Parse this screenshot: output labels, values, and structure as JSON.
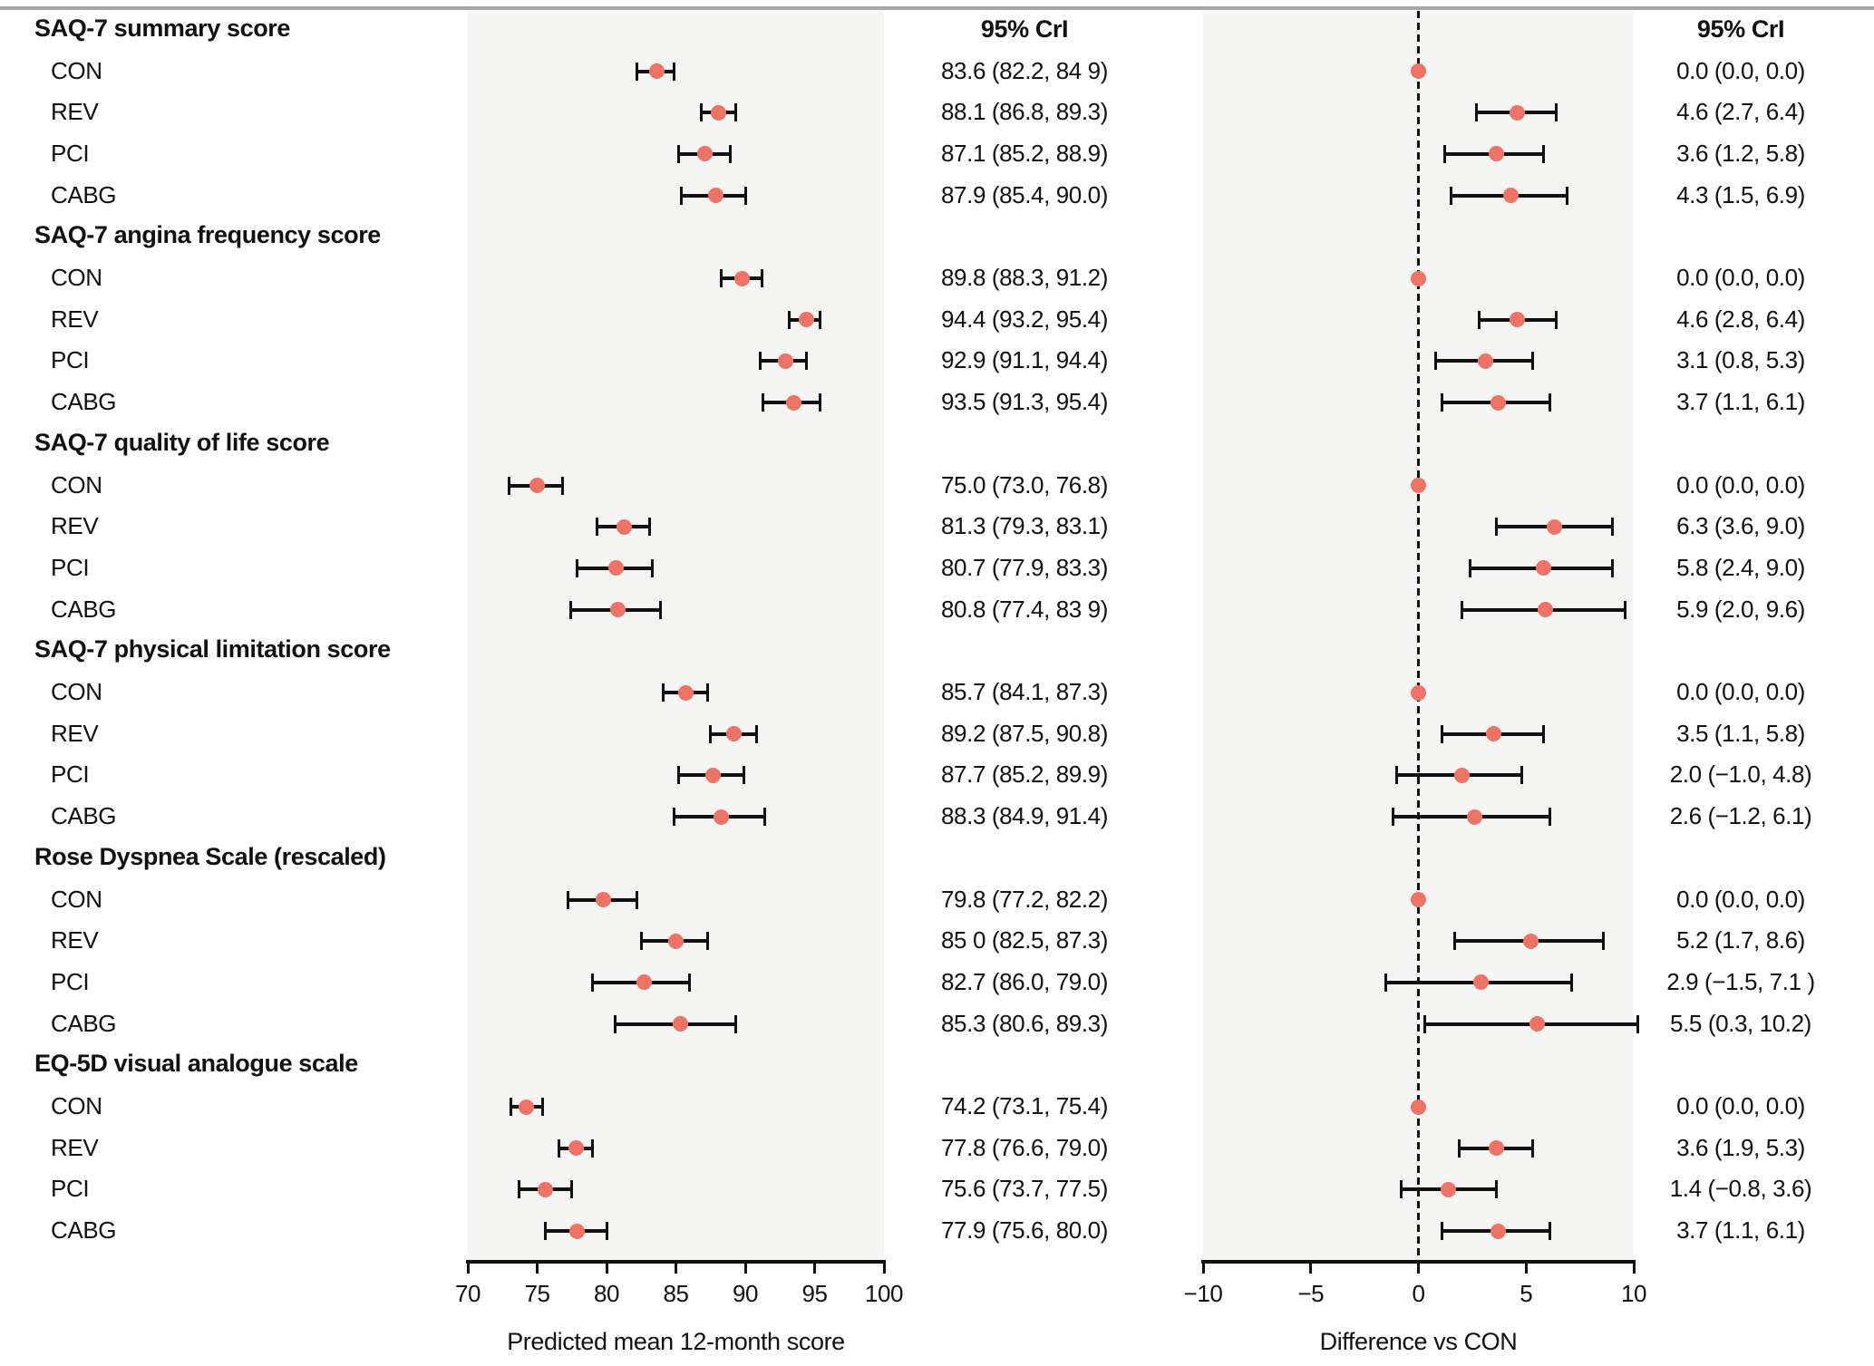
{
  "colors": {
    "marker": "#ee7365",
    "panel_bg": "#f5f5f3",
    "top_rule": "#a6a6a6",
    "interval_line": "#111111"
  },
  "chart_data": {
    "type": "forest",
    "groups": [
      "CON",
      "REV",
      "PCI",
      "CABG"
    ],
    "left_panel": {
      "ci_header": "95% CrI",
      "xlabel": "Predicted mean 12-month score",
      "xlim": [
        70,
        100
      ],
      "xtick_values": [
        70,
        75,
        80,
        85,
        90,
        95,
        100
      ],
      "xtick_labels": [
        "70",
        "75",
        "80",
        "85",
        "90",
        "95",
        "100"
      ]
    },
    "right_panel": {
      "ci_header": "95% CrI",
      "xlabel": "Difference vs CON",
      "xlim": [
        -10,
        10
      ],
      "xtick_values": [
        -10,
        -5,
        0,
        5,
        10
      ],
      "xtick_labels": [
        "−10",
        "−5",
        "0",
        "5",
        "10"
      ],
      "reference_line": 0
    },
    "sections": [
      {
        "title": "SAQ-7 summary score",
        "rows": [
          {
            "label": "CON",
            "mean": 83.6,
            "ci": [
              82.2,
              84.9
            ],
            "ci_text": "83.6 (82.2, 84 9)",
            "diff": 0.0,
            "diff_ci": [
              0.0,
              0.0
            ],
            "diff_text": "0.0 (0.0, 0.0)"
          },
          {
            "label": "REV",
            "mean": 88.1,
            "ci": [
              86.8,
              89.3
            ],
            "ci_text": "88.1 (86.8, 89.3)",
            "diff": 4.6,
            "diff_ci": [
              2.7,
              6.4
            ],
            "diff_text": "4.6 (2.7, 6.4)"
          },
          {
            "label": "PCI",
            "mean": 87.1,
            "ci": [
              85.2,
              88.9
            ],
            "ci_text": "87.1 (85.2, 88.9)",
            "diff": 3.6,
            "diff_ci": [
              1.2,
              5.8
            ],
            "diff_text": "3.6 (1.2, 5.8)"
          },
          {
            "label": "CABG",
            "mean": 87.9,
            "ci": [
              85.4,
              90.0
            ],
            "ci_text": "87.9 (85.4, 90.0)",
            "diff": 4.3,
            "diff_ci": [
              1.5,
              6.9
            ],
            "diff_text": "4.3 (1.5, 6.9)"
          }
        ]
      },
      {
        "title": "SAQ-7 angina frequency score",
        "rows": [
          {
            "label": "CON",
            "mean": 89.8,
            "ci": [
              88.3,
              91.2
            ],
            "ci_text": "89.8 (88.3, 91.2)",
            "diff": 0.0,
            "diff_ci": [
              0.0,
              0.0
            ],
            "diff_text": "0.0 (0.0, 0.0)"
          },
          {
            "label": "REV",
            "mean": 94.4,
            "ci": [
              93.2,
              95.4
            ],
            "ci_text": "94.4 (93.2, 95.4)",
            "diff": 4.6,
            "diff_ci": [
              2.8,
              6.4
            ],
            "diff_text": "4.6 (2.8, 6.4)"
          },
          {
            "label": "PCI",
            "mean": 92.9,
            "ci": [
              91.1,
              94.4
            ],
            "ci_text": "92.9 (91.1, 94.4)",
            "diff": 3.1,
            "diff_ci": [
              0.8,
              5.3
            ],
            "diff_text": "3.1 (0.8, 5.3)"
          },
          {
            "label": "CABG",
            "mean": 93.5,
            "ci": [
              91.3,
              95.4
            ],
            "ci_text": "93.5 (91.3, 95.4)",
            "diff": 3.7,
            "diff_ci": [
              1.1,
              6.1
            ],
            "diff_text": "3.7 (1.1, 6.1)"
          }
        ]
      },
      {
        "title": "SAQ-7 quality of life score",
        "rows": [
          {
            "label": "CON",
            "mean": 75.0,
            "ci": [
              73.0,
              76.8
            ],
            "ci_text": "75.0 (73.0, 76.8)",
            "diff": 0.0,
            "diff_ci": [
              0.0,
              0.0
            ],
            "diff_text": "0.0 (0.0, 0.0)"
          },
          {
            "label": "REV",
            "mean": 81.3,
            "ci": [
              79.3,
              83.1
            ],
            "ci_text": "81.3 (79.3, 83.1)",
            "diff": 6.3,
            "diff_ci": [
              3.6,
              9.0
            ],
            "diff_text": "6.3 (3.6, 9.0)"
          },
          {
            "label": "PCI",
            "mean": 80.7,
            "ci": [
              77.9,
              83.3
            ],
            "ci_text": "80.7 (77.9, 83.3)",
            "diff": 5.8,
            "diff_ci": [
              2.4,
              9.0
            ],
            "diff_text": "5.8 (2.4, 9.0)"
          },
          {
            "label": "CABG",
            "mean": 80.8,
            "ci": [
              77.4,
              83.9
            ],
            "ci_text": "80.8 (77.4, 83 9)",
            "diff": 5.9,
            "diff_ci": [
              2.0,
              9.6
            ],
            "diff_text": "5.9 (2.0, 9.6)"
          }
        ]
      },
      {
        "title": "SAQ-7 physical limitation score",
        "rows": [
          {
            "label": "CON",
            "mean": 85.7,
            "ci": [
              84.1,
              87.3
            ],
            "ci_text": "85.7 (84.1, 87.3)",
            "diff": 0.0,
            "diff_ci": [
              0.0,
              0.0
            ],
            "diff_text": "0.0 (0.0, 0.0)"
          },
          {
            "label": "REV",
            "mean": 89.2,
            "ci": [
              87.5,
              90.8
            ],
            "ci_text": "89.2 (87.5, 90.8)",
            "diff": 3.5,
            "diff_ci": [
              1.1,
              5.8
            ],
            "diff_text": "3.5 (1.1, 5.8)"
          },
          {
            "label": "PCI",
            "mean": 87.7,
            "ci": [
              85.2,
              89.9
            ],
            "ci_text": "87.7 (85.2, 89.9)",
            "diff": 2.0,
            "diff_ci": [
              -1.0,
              4.8
            ],
            "diff_text": "2.0 (−1.0, 4.8)"
          },
          {
            "label": "CABG",
            "mean": 88.3,
            "ci": [
              84.9,
              91.4
            ],
            "ci_text": "88.3 (84.9, 91.4)",
            "diff": 2.6,
            "diff_ci": [
              -1.2,
              6.1
            ],
            "diff_text": "2.6 (−1.2, 6.1)"
          }
        ]
      },
      {
        "title": "Rose Dyspnea Scale (rescaled)",
        "rows": [
          {
            "label": "CON",
            "mean": 79.8,
            "ci": [
              77.2,
              82.2
            ],
            "ci_text": "79.8 (77.2, 82.2)",
            "diff": 0.0,
            "diff_ci": [
              0.0,
              0.0
            ],
            "diff_text": "0.0 (0.0, 0.0)"
          },
          {
            "label": "REV",
            "mean": 85.0,
            "ci": [
              82.5,
              87.3
            ],
            "ci_text": "85 0 (82.5, 87.3)",
            "diff": 5.2,
            "diff_ci": [
              1.7,
              8.6
            ],
            "diff_text": "5.2 (1.7, 8.6)"
          },
          {
            "label": "PCI",
            "mean": 82.7,
            "ci": [
              79.0,
              86.0
            ],
            "ci_text": "82.7 (86.0, 79.0)",
            "diff": 2.9,
            "diff_ci": [
              -1.5,
              7.1
            ],
            "diff_text": "2.9 (−1.5, 7.1 )"
          },
          {
            "label": "CABG",
            "mean": 85.3,
            "ci": [
              80.6,
              89.3
            ],
            "ci_text": "85.3 (80.6, 89.3)",
            "diff": 5.5,
            "diff_ci": [
              0.3,
              10.2
            ],
            "diff_text": "5.5 (0.3, 10.2)"
          }
        ]
      },
      {
        "title": "EQ-5D visual analogue scale",
        "rows": [
          {
            "label": "CON",
            "mean": 74.2,
            "ci": [
              73.1,
              75.4
            ],
            "ci_text": "74.2 (73.1, 75.4)",
            "diff": 0.0,
            "diff_ci": [
              0.0,
              0.0
            ],
            "diff_text": "0.0 (0.0, 0.0)"
          },
          {
            "label": "REV",
            "mean": 77.8,
            "ci": [
              76.6,
              79.0
            ],
            "ci_text": "77.8 (76.6, 79.0)",
            "diff": 3.6,
            "diff_ci": [
              1.9,
              5.3
            ],
            "diff_text": "3.6 (1.9, 5.3)"
          },
          {
            "label": "PCI",
            "mean": 75.6,
            "ci": [
              73.7,
              77.5
            ],
            "ci_text": "75.6 (73.7, 77.5)",
            "diff": 1.4,
            "diff_ci": [
              -0.8,
              3.6
            ],
            "diff_text": "1.4 (−0.8, 3.6)"
          },
          {
            "label": "CABG",
            "mean": 77.9,
            "ci": [
              75.6,
              80.0
            ],
            "ci_text": "77.9 (75.6, 80.0)",
            "diff": 3.7,
            "diff_ci": [
              1.1,
              6.1
            ],
            "diff_text": "3.7 (1.1, 6.1)"
          }
        ]
      }
    ]
  }
}
